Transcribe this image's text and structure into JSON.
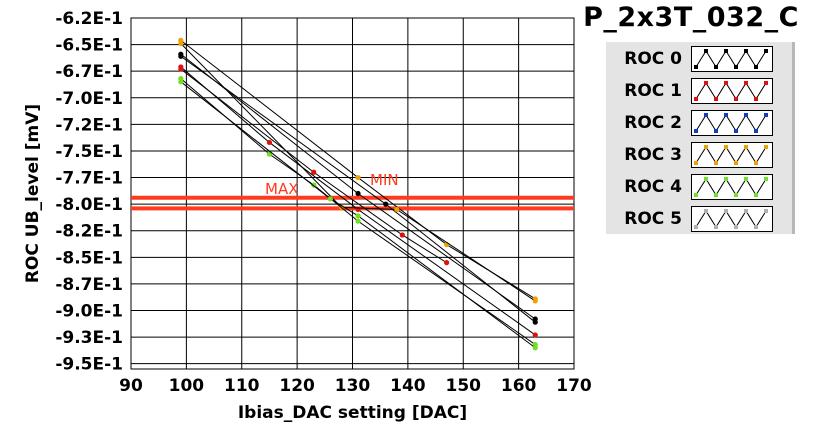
{
  "title": "P_2x3T_032_C",
  "chart_data": {
    "type": "scatter",
    "xlabel": "Ibias_DAC setting [DAC]",
    "ylabel": "ROC UB_level [mV]",
    "xlim": [
      90,
      170
    ],
    "ylim": [
      -950,
      -620
    ],
    "x_ticks": [
      90,
      100,
      110,
      120,
      130,
      140,
      150,
      160,
      170
    ],
    "y_ticks": [
      {
        "value": -620,
        "label": "-6.2E-1"
      },
      {
        "value": -645,
        "label": "-6.5E-1"
      },
      {
        "value": -670,
        "label": "-6.7E-1"
      },
      {
        "value": -695,
        "label": "-7.0E-1"
      },
      {
        "value": -720,
        "label": "-7.2E-1"
      },
      {
        "value": -745,
        "label": "-7.5E-1"
      },
      {
        "value": -770,
        "label": "-7.7E-1"
      },
      {
        "value": -795,
        "label": "-8.0E-1"
      },
      {
        "value": -820,
        "label": "-8.2E-1"
      },
      {
        "value": -845,
        "label": "-8.5E-1"
      },
      {
        "value": -870,
        "label": "-8.7E-1"
      },
      {
        "value": -895,
        "label": "-9.0E-1"
      },
      {
        "value": -920,
        "label": "-9.3E-1"
      },
      {
        "value": -945,
        "label": "-9.5E-1"
      }
    ],
    "grid": true,
    "legend_position": "top-right",
    "thresholds": [
      {
        "label": "MAX",
        "value": -789,
        "color": "#ff3b1f"
      },
      {
        "label": "MIN",
        "value": -799,
        "color": "#ff3b1f"
      }
    ],
    "series": [
      {
        "name": "ROC 0",
        "color": "#000000",
        "points": [
          [
            99,
            -654
          ],
          [
            131,
            -785
          ],
          [
            163,
            -903
          ]
        ]
      },
      {
        "name": "ROC 0",
        "color": "#000000",
        "points": [
          [
            99,
            -656
          ],
          [
            136,
            -795
          ],
          [
            163,
            -906
          ]
        ]
      },
      {
        "name": "ROC 1",
        "color": "#e01010",
        "points": [
          [
            99,
            -666
          ],
          [
            115,
            -737
          ],
          [
            131,
            -800
          ],
          [
            163,
            -918
          ]
        ]
      },
      {
        "name": "ROC 1",
        "color": "#e01010",
        "points": [
          [
            99,
            -668
          ],
          [
            123,
            -765
          ],
          [
            139,
            -824
          ],
          [
            147,
            -850
          ]
        ]
      },
      {
        "name": "ROC 3",
        "color": "#f0a000",
        "points": [
          [
            99,
            -641
          ],
          [
            131,
            -770
          ],
          [
            147,
            -833
          ],
          [
            163,
            -884
          ]
        ]
      },
      {
        "name": "ROC 3",
        "color": "#f0a000",
        "points": [
          [
            99,
            -644
          ],
          [
            128,
            -798
          ],
          [
            138,
            -800
          ],
          [
            163,
            -886
          ]
        ]
      },
      {
        "name": "ROC 4",
        "color": "#70e020",
        "points": [
          [
            99,
            -677
          ],
          [
            115,
            -748
          ],
          [
            123,
            -777
          ],
          [
            131,
            -811
          ],
          [
            163,
            -927
          ]
        ]
      },
      {
        "name": "ROC 4",
        "color": "#70e020",
        "points": [
          [
            99,
            -680
          ],
          [
            126,
            -790
          ],
          [
            131,
            -806
          ],
          [
            163,
            -930
          ]
        ]
      }
    ],
    "legend": [
      {
        "label": "ROC 0",
        "color": "#000000"
      },
      {
        "label": "ROC 1",
        "color": "#e01010"
      },
      {
        "label": "ROC 2",
        "color": "#1040c0"
      },
      {
        "label": "ROC 3",
        "color": "#f0a000"
      },
      {
        "label": "ROC 4",
        "color": "#70e020"
      },
      {
        "label": "ROC 5",
        "color": "#b0b0b0"
      }
    ]
  }
}
